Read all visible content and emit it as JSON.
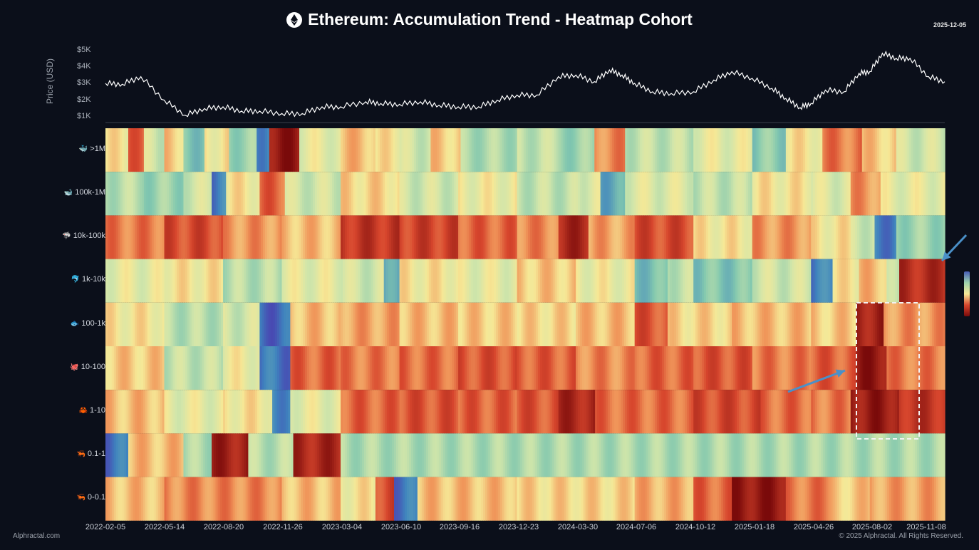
{
  "header": {
    "title": "Ethereum: Accumulation Trend - Heatmap Cohort",
    "date": "2025-12-05"
  },
  "footer": {
    "brand": "Alphractal.com",
    "copyright": "© 2025 Alphractal. All Rights Reserved."
  },
  "colors": {
    "background": "#0b0f1a",
    "price_line": "#ffffff",
    "low": "#4a3fb0",
    "mid": "#f6f0a0",
    "high": "#7a0a0a",
    "annotation_arrow": "#4a90c8",
    "highlight_box": "#f2f2f2"
  },
  "chart_data": [
    {
      "type": "line",
      "ylabel": "Price (USD)",
      "yticks": [
        "$5K",
        "$4K",
        "$3K",
        "$2K",
        "$1K"
      ],
      "ylim": [
        1000,
        5000
      ],
      "series": [
        {
          "x": [
            "2022-02-05",
            "2022-03-05",
            "2022-04-05",
            "2022-05-14",
            "2022-06-18",
            "2022-07-20",
            "2022-08-20",
            "2022-09-20",
            "2022-10-20",
            "2022-11-26",
            "2022-12-30",
            "2023-02-01",
            "2023-03-04",
            "2023-04-15",
            "2023-05-10",
            "2023-06-10",
            "2023-07-15",
            "2023-08-15",
            "2023-09-16",
            "2023-10-20",
            "2023-11-20",
            "2023-12-23",
            "2024-01-25",
            "2024-03-01",
            "2024-03-30",
            "2024-04-30",
            "2024-05-25",
            "2024-06-15",
            "2024-07-06",
            "2024-08-05",
            "2024-09-05",
            "2024-10-12",
            "2024-11-15",
            "2024-12-15",
            "2025-01-18",
            "2025-02-20",
            "2025-03-15",
            "2025-04-08",
            "2025-04-26",
            "2025-05-20",
            "2025-06-20",
            "2025-07-15",
            "2025-08-02",
            "2025-08-23",
            "2025-09-15",
            "2025-10-08",
            "2025-11-08",
            "2025-12-05"
          ],
          "values": [
            3000,
            2950,
            3400,
            2000,
            1100,
            1500,
            1600,
            1350,
            1350,
            1200,
            1200,
            1600,
            1600,
            1900,
            1800,
            1750,
            1900,
            1700,
            1600,
            1600,
            2000,
            2300,
            2300,
            3400,
            3500,
            3100,
            3800,
            3500,
            3000,
            2500,
            2400,
            2500,
            3200,
            3700,
            3300,
            2700,
            2100,
            1550,
            1800,
            2600,
            2500,
            3600,
            3700,
            4800,
            4500,
            4500,
            3400,
            3100
          ]
        }
      ]
    },
    {
      "type": "heatmap",
      "x_ticks": [
        "2022-02-05",
        "2022-05-14",
        "2022-08-20",
        "2022-11-26",
        "2023-03-04",
        "2023-06-10",
        "2023-09-16",
        "2023-12-23",
        "2024-03-30",
        "2024-07-06",
        "2024-10-12",
        "2025-01-18",
        "2025-04-26",
        "2025-08-02",
        "2025-11-08"
      ],
      "x_range": [
        "2022-02-05",
        "2025-12-05"
      ],
      "rows": [
        {
          "name": ">1M",
          "icon": "🐳",
          "segments": [
            [
              "2022-02-05",
              "2022-03-15",
              0.55
            ],
            [
              "2022-03-15",
              "2022-04-10",
              0.75
            ],
            [
              "2022-04-10",
              "2022-05-14",
              0.45
            ],
            [
              "2022-05-14",
              "2022-06-15",
              0.6
            ],
            [
              "2022-06-15",
              "2022-07-20",
              0.3
            ],
            [
              "2022-07-20",
              "2022-08-30",
              0.55
            ],
            [
              "2022-08-30",
              "2022-10-15",
              0.35
            ],
            [
              "2022-10-15",
              "2022-11-05",
              0.15
            ],
            [
              "2022-11-05",
              "2022-12-25",
              0.95
            ],
            [
              "2022-12-25",
              "2023-03-04",
              0.5
            ],
            [
              "2023-03-04",
              "2023-05-01",
              0.62
            ],
            [
              "2023-05-01",
              "2023-06-10",
              0.55
            ],
            [
              "2023-06-10",
              "2023-08-01",
              0.45
            ],
            [
              "2023-08-01",
              "2023-09-20",
              0.6
            ],
            [
              "2023-09-20",
              "2023-12-23",
              0.38
            ],
            [
              "2023-12-23",
              "2024-03-01",
              0.42
            ],
            [
              "2024-03-01",
              "2024-04-30",
              0.35
            ],
            [
              "2024-04-30",
              "2024-06-20",
              0.7
            ],
            [
              "2024-06-20",
              "2024-10-12",
              0.42
            ],
            [
              "2024-10-12",
              "2025-01-18",
              0.5
            ],
            [
              "2025-01-18",
              "2025-03-15",
              0.32
            ],
            [
              "2025-03-15",
              "2025-05-15",
              0.55
            ],
            [
              "2025-05-15",
              "2025-07-20",
              0.72
            ],
            [
              "2025-07-20",
              "2025-09-15",
              0.6
            ],
            [
              "2025-09-15",
              "2025-12-05",
              0.45
            ]
          ]
        },
        {
          "name": "100k-1M",
          "icon": "🐋",
          "segments": [
            [
              "2022-02-05",
              "2022-04-10",
              0.4
            ],
            [
              "2022-04-10",
              "2022-06-15",
              0.35
            ],
            [
              "2022-06-15",
              "2022-08-01",
              0.45
            ],
            [
              "2022-08-01",
              "2022-08-25",
              0.12
            ],
            [
              "2022-08-25",
              "2022-10-20",
              0.55
            ],
            [
              "2022-10-20",
              "2022-12-01",
              0.75
            ],
            [
              "2022-12-01",
              "2023-03-04",
              0.45
            ],
            [
              "2023-03-04",
              "2023-06-10",
              0.58
            ],
            [
              "2023-06-10",
              "2023-09-16",
              0.45
            ],
            [
              "2023-09-16",
              "2023-12-23",
              0.52
            ],
            [
              "2023-12-23",
              "2024-03-30",
              0.42
            ],
            [
              "2024-03-30",
              "2024-05-10",
              0.48
            ],
            [
              "2024-05-10",
              "2024-06-20",
              0.22
            ],
            [
              "2024-06-20",
              "2024-10-12",
              0.48
            ],
            [
              "2024-10-12",
              "2025-01-18",
              0.42
            ],
            [
              "2025-01-18",
              "2025-04-26",
              0.55
            ],
            [
              "2025-04-26",
              "2025-07-01",
              0.48
            ],
            [
              "2025-07-01",
              "2025-08-20",
              0.68
            ],
            [
              "2025-08-20",
              "2025-12-05",
              0.5
            ]
          ]
        },
        {
          "name": "10k-100k",
          "icon": "🦈",
          "segments": [
            [
              "2022-02-05",
              "2022-05-14",
              0.72
            ],
            [
              "2022-05-14",
              "2022-08-20",
              0.8
            ],
            [
              "2022-08-20",
              "2022-11-26",
              0.68
            ],
            [
              "2022-11-26",
              "2023-03-04",
              0.62
            ],
            [
              "2023-03-04",
              "2023-06-10",
              0.85
            ],
            [
              "2023-06-10",
              "2023-09-16",
              0.82
            ],
            [
              "2023-09-16",
              "2023-12-23",
              0.75
            ],
            [
              "2023-12-23",
              "2024-03-01",
              0.7
            ],
            [
              "2024-03-01",
              "2024-04-20",
              0.9
            ],
            [
              "2024-04-20",
              "2024-07-06",
              0.66
            ],
            [
              "2024-07-06",
              "2024-10-12",
              0.8
            ],
            [
              "2024-10-12",
              "2025-01-18",
              0.55
            ],
            [
              "2025-01-18",
              "2025-04-26",
              0.68
            ],
            [
              "2025-04-26",
              "2025-07-01",
              0.55
            ],
            [
              "2025-07-01",
              "2025-08-10",
              0.45
            ],
            [
              "2025-08-10",
              "2025-09-15",
              0.12
            ],
            [
              "2025-09-15",
              "2025-12-05",
              0.35
            ]
          ]
        },
        {
          "name": "1k-10k",
          "icon": "🐬",
          "segments": [
            [
              "2022-02-05",
              "2022-05-14",
              0.5
            ],
            [
              "2022-05-14",
              "2022-08-20",
              0.55
            ],
            [
              "2022-08-20",
              "2022-11-26",
              0.4
            ],
            [
              "2022-11-26",
              "2023-03-04",
              0.5
            ],
            [
              "2023-03-04",
              "2023-05-15",
              0.45
            ],
            [
              "2023-05-15",
              "2023-06-10",
              0.2
            ],
            [
              "2023-06-10",
              "2023-09-16",
              0.55
            ],
            [
              "2023-09-16",
              "2023-12-23",
              0.5
            ],
            [
              "2023-12-23",
              "2024-03-30",
              0.6
            ],
            [
              "2024-03-30",
              "2024-07-06",
              0.52
            ],
            [
              "2024-07-06",
              "2024-08-30",
              0.28
            ],
            [
              "2024-08-30",
              "2024-10-12",
              0.42
            ],
            [
              "2024-10-12",
              "2025-01-18",
              0.3
            ],
            [
              "2025-01-18",
              "2025-04-26",
              0.45
            ],
            [
              "2025-04-26",
              "2025-06-01",
              0.12
            ],
            [
              "2025-06-01",
              "2025-07-15",
              0.55
            ],
            [
              "2025-07-15",
              "2025-08-30",
              0.62
            ],
            [
              "2025-08-30",
              "2025-09-20",
              0.4
            ],
            [
              "2025-09-20",
              "2025-12-05",
              0.88
            ]
          ]
        },
        {
          "name": "100-1k",
          "icon": "🐟",
          "segments": [
            [
              "2022-02-05",
              "2022-05-14",
              0.55
            ],
            [
              "2022-05-14",
              "2022-08-20",
              0.4
            ],
            [
              "2022-08-20",
              "2022-10-20",
              0.45
            ],
            [
              "2022-10-20",
              "2022-12-10",
              0.08
            ],
            [
              "2022-12-10",
              "2023-03-04",
              0.62
            ],
            [
              "2023-03-04",
              "2023-06-10",
              0.66
            ],
            [
              "2023-06-10",
              "2023-09-16",
              0.62
            ],
            [
              "2023-09-16",
              "2023-12-23",
              0.6
            ],
            [
              "2023-12-23",
              "2024-03-30",
              0.58
            ],
            [
              "2024-03-30",
              "2024-07-06",
              0.62
            ],
            [
              "2024-07-06",
              "2024-08-30",
              0.78
            ],
            [
              "2024-08-30",
              "2024-12-15",
              0.58
            ],
            [
              "2024-12-15",
              "2025-04-26",
              0.62
            ],
            [
              "2025-04-26",
              "2025-07-10",
              0.6
            ],
            [
              "2025-07-10",
              "2025-08-25",
              0.92
            ],
            [
              "2025-08-25",
              "2025-12-05",
              0.68
            ]
          ]
        },
        {
          "name": "10-100",
          "icon": "🐙",
          "segments": [
            [
              "2022-02-05",
              "2022-05-14",
              0.6
            ],
            [
              "2022-05-14",
              "2022-08-20",
              0.42
            ],
            [
              "2022-08-20",
              "2022-10-20",
              0.52
            ],
            [
              "2022-10-20",
              "2022-12-10",
              0.1
            ],
            [
              "2022-12-10",
              "2023-03-04",
              0.75
            ],
            [
              "2023-03-04",
              "2023-06-10",
              0.72
            ],
            [
              "2023-06-10",
              "2023-09-16",
              0.74
            ],
            [
              "2023-09-16",
              "2023-12-23",
              0.78
            ],
            [
              "2023-12-23",
              "2024-03-30",
              0.76
            ],
            [
              "2024-03-30",
              "2024-07-06",
              0.7
            ],
            [
              "2024-07-06",
              "2024-10-12",
              0.75
            ],
            [
              "2024-10-12",
              "2025-01-18",
              0.78
            ],
            [
              "2025-01-18",
              "2025-04-26",
              0.72
            ],
            [
              "2025-04-26",
              "2025-07-10",
              0.76
            ],
            [
              "2025-07-10",
              "2025-08-30",
              0.95
            ],
            [
              "2025-08-30",
              "2025-12-05",
              0.72
            ]
          ]
        },
        {
          "name": "1-10",
          "icon": "🦀",
          "segments": [
            [
              "2022-02-05",
              "2022-05-14",
              0.62
            ],
            [
              "2022-05-14",
              "2022-08-20",
              0.5
            ],
            [
              "2022-08-20",
              "2022-11-10",
              0.55
            ],
            [
              "2022-11-10",
              "2022-12-10",
              0.15
            ],
            [
              "2022-12-10",
              "2023-03-04",
              0.5
            ],
            [
              "2023-03-04",
              "2023-06-10",
              0.75
            ],
            [
              "2023-06-10",
              "2023-09-16",
              0.78
            ],
            [
              "2023-09-16",
              "2023-12-23",
              0.76
            ],
            [
              "2023-12-23",
              "2024-03-01",
              0.78
            ],
            [
              "2024-03-01",
              "2024-05-01",
              0.9
            ],
            [
              "2024-05-01",
              "2024-10-12",
              0.74
            ],
            [
              "2024-10-12",
              "2025-02-01",
              0.8
            ],
            [
              "2025-02-01",
              "2025-04-26",
              0.74
            ],
            [
              "2025-04-26",
              "2025-07-01",
              0.72
            ],
            [
              "2025-07-01",
              "2025-09-20",
              0.94
            ],
            [
              "2025-09-20",
              "2025-12-05",
              0.86
            ]
          ]
        },
        {
          "name": "0.1-1",
          "icon": "🦐",
          "segments": [
            [
              "2022-02-05",
              "2022-03-15",
              0.1
            ],
            [
              "2022-03-15",
              "2022-06-15",
              0.62
            ],
            [
              "2022-06-15",
              "2022-08-01",
              0.38
            ],
            [
              "2022-08-01",
              "2022-10-01",
              0.92
            ],
            [
              "2022-10-01",
              "2022-12-15",
              0.4
            ],
            [
              "2022-12-15",
              "2023-03-04",
              0.9
            ],
            [
              "2023-03-04",
              "2025-12-05",
              0.38
            ]
          ]
        },
        {
          "name": "0-0.1",
          "icon": "🦐",
          "segments": [
            [
              "2022-02-05",
              "2022-05-14",
              0.62
            ],
            [
              "2022-05-14",
              "2022-11-26",
              0.7
            ],
            [
              "2022-11-26",
              "2023-03-04",
              0.62
            ],
            [
              "2023-03-04",
              "2023-05-01",
              0.55
            ],
            [
              "2023-05-01",
              "2023-06-01",
              0.8
            ],
            [
              "2023-06-01",
              "2023-07-10",
              0.1
            ],
            [
              "2023-07-10",
              "2023-12-23",
              0.62
            ],
            [
              "2023-12-23",
              "2024-07-06",
              0.58
            ],
            [
              "2024-07-06",
              "2024-10-12",
              0.64
            ],
            [
              "2024-10-12",
              "2024-12-15",
              0.75
            ],
            [
              "2024-12-15",
              "2025-03-15",
              0.95
            ],
            [
              "2025-03-15",
              "2025-06-01",
              0.72
            ],
            [
              "2025-06-01",
              "2025-08-02",
              0.6
            ],
            [
              "2025-08-02",
              "2025-12-05",
              0.66
            ]
          ]
        }
      ]
    }
  ]
}
